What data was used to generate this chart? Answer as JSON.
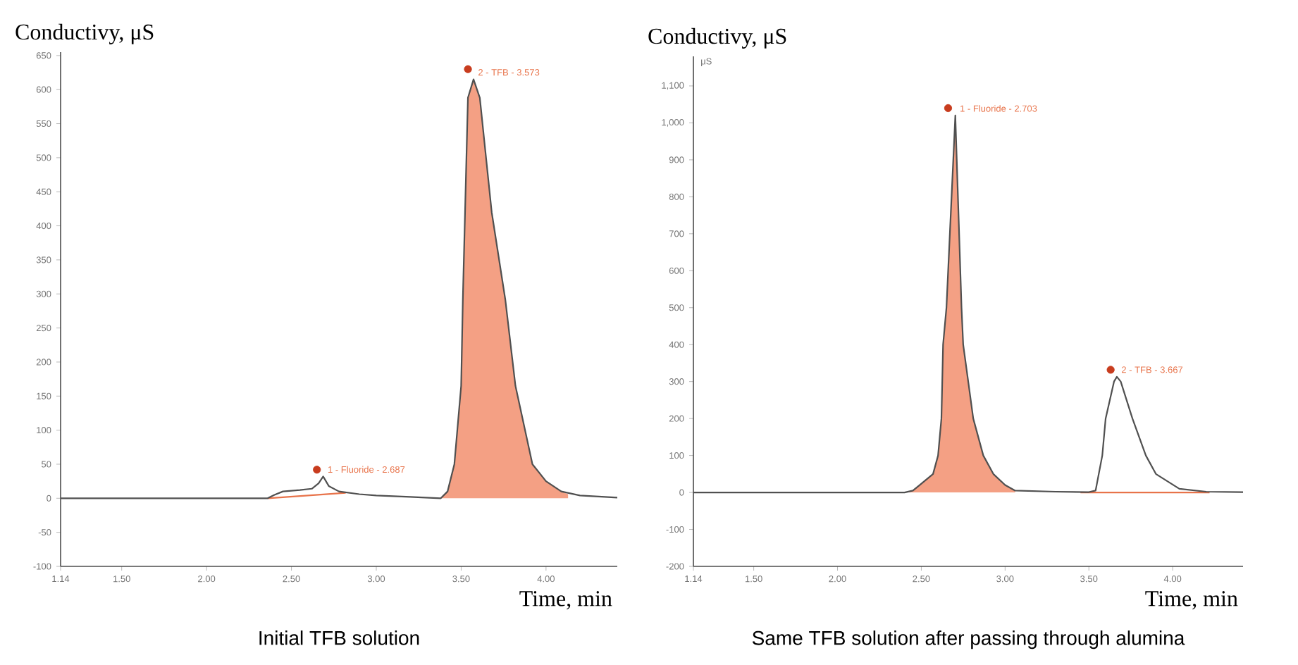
{
  "chart_data": [
    {
      "type": "line",
      "title": "Initial TFB solution",
      "xlabel": "Time, min",
      "ylabel": "Conductivy, μS",
      "xlim": [
        1.14,
        4.42
      ],
      "ylim": [
        -100,
        655
      ],
      "xticks": [
        {
          "value": 1.14,
          "label": "1.14"
        },
        {
          "value": 1.5,
          "label": "1.50"
        },
        {
          "value": 2.0,
          "label": "2.00"
        },
        {
          "value": 2.5,
          "label": "2.50"
        },
        {
          "value": 3.0,
          "label": "3.00"
        },
        {
          "value": 3.5,
          "label": "3.50"
        },
        {
          "value": 4.0,
          "label": "4.00"
        }
      ],
      "yticks": [
        -100,
        -50,
        0,
        50,
        100,
        150,
        200,
        250,
        300,
        350,
        400,
        450,
        500,
        550,
        600,
        650
      ],
      "series": [
        {
          "type": "area",
          "color": "#f4a084",
          "x": [
            3.38,
            3.42,
            3.46,
            3.5,
            3.51,
            3.54,
            3.573,
            3.61,
            3.68,
            3.76,
            3.82,
            3.92,
            4.0,
            4.09,
            4.13
          ],
          "values": [
            0,
            10,
            50,
            165,
            292,
            588,
            615,
            588,
            420,
            292,
            165,
            50,
            25,
            10,
            6
          ]
        },
        {
          "color": "#e8734a",
          "x": [
            2.36,
            2.82
          ],
          "values": [
            0,
            8
          ]
        },
        {
          "color": "#505050",
          "x": [
            1.14,
            2.36,
            2.4,
            2.45,
            2.55,
            2.62,
            2.66,
            2.687,
            2.72,
            2.78,
            2.9,
            3.0,
            3.2,
            3.38,
            3.42,
            3.46,
            3.5,
            3.51,
            3.54,
            3.573,
            3.61,
            3.68,
            3.76,
            3.82,
            3.92,
            4.0,
            4.09,
            4.2,
            4.42
          ],
          "values": [
            0,
            0,
            5,
            10,
            12,
            14,
            22,
            32,
            18,
            10,
            6,
            4,
            2,
            0,
            10,
            50,
            165,
            292,
            588,
            615,
            588,
            420,
            292,
            165,
            50,
            25,
            10,
            4,
            1
          ]
        },
        {
          "type": "scatter",
          "color": "#c83c1e",
          "x": [
            2.65,
            3.54
          ],
          "values": [
            42,
            630
          ]
        }
      ],
      "annotations": [
        {
          "text": "1 - Fluoride - 2.687",
          "x": 2.687,
          "y": 32
        },
        {
          "text": "2 - TFB - 3.573",
          "x": 3.573,
          "y": 615
        }
      ]
    },
    {
      "type": "line",
      "title": "Same TFB solution after passing through alumina",
      "xlabel": "Time, min",
      "ylabel": "Conductivy, μS",
      "xlim": [
        1.14,
        4.42
      ],
      "ylim": [
        -200,
        1180
      ],
      "xticks": [
        {
          "value": 1.14,
          "label": "1.14"
        },
        {
          "value": 1.5,
          "label": "1.50"
        },
        {
          "value": 2.0,
          "label": "2.00"
        },
        {
          "value": 2.5,
          "label": "2.50"
        },
        {
          "value": 3.0,
          "label": "3.00"
        },
        {
          "value": 3.5,
          "label": "3.50"
        },
        {
          "value": 4.0,
          "label": "4.00"
        }
      ],
      "yticks": [
        -200,
        -100,
        0,
        100,
        200,
        300,
        400,
        500,
        600,
        700,
        800,
        900,
        {
          "value": 1000,
          "label": "1,000"
        },
        {
          "value": 1100,
          "label": "1,100"
        }
      ],
      "series": [
        {
          "type": "area",
          "color": "#f4a084",
          "x": [
            2.4,
            2.45,
            2.49,
            2.57,
            2.6,
            2.62,
            2.63,
            2.65,
            2.703,
            2.74,
            2.75,
            2.78,
            2.81,
            2.87,
            2.93,
            3.0,
            3.06
          ],
          "values": [
            0,
            5,
            20,
            50,
            100,
            200,
            400,
            500,
            1020,
            500,
            400,
            300,
            200,
            100,
            50,
            20,
            5
          ]
        },
        {
          "color": "#e8734a",
          "x": [
            3.45,
            4.22
          ],
          "values": [
            0,
            0
          ]
        },
        {
          "color": "#505050",
          "x": [
            1.14,
            2.4,
            2.45,
            2.49,
            2.57,
            2.6,
            2.62,
            2.63,
            2.65,
            2.703,
            2.74,
            2.75,
            2.78,
            2.81,
            2.87,
            2.93,
            3.0,
            3.06,
            3.3,
            3.5,
            3.54,
            3.58,
            3.6,
            3.65,
            3.667,
            3.69,
            3.76,
            3.84,
            3.9,
            4.04,
            4.2,
            4.42
          ],
          "values": [
            0,
            0,
            5,
            20,
            50,
            100,
            200,
            400,
            500,
            1020,
            500,
            400,
            300,
            200,
            100,
            50,
            20,
            5,
            2,
            1,
            5,
            100,
            200,
            300,
            313,
            300,
            200,
            100,
            50,
            10,
            2,
            1
          ]
        },
        {
          "type": "scatter",
          "color": "#c83c1e",
          "x": [
            2.66,
            3.63
          ],
          "values": [
            1040,
            332
          ]
        }
      ],
      "annotations": [
        "μS",
        {
          "text": "1 - Fluoride - 2.703",
          "x": 2.703,
          "y": 1020
        },
        {
          "text": "2 - TFB - 3.667",
          "x": 3.667,
          "y": 313
        }
      ]
    }
  ]
}
